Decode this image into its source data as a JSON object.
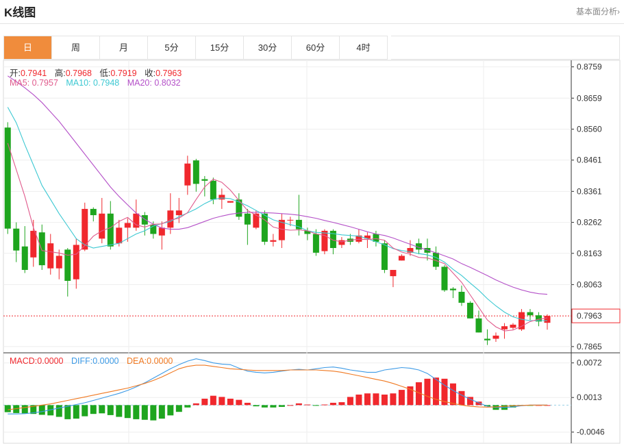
{
  "header": {
    "title": "K线图",
    "analysis_link": "基本面分析›"
  },
  "tabs": [
    {
      "label": "日",
      "active": true
    },
    {
      "label": "周",
      "active": false
    },
    {
      "label": "月",
      "active": false
    },
    {
      "label": "5分",
      "active": false
    },
    {
      "label": "15分",
      "active": false
    },
    {
      "label": "30分",
      "active": false
    },
    {
      "label": "60分",
      "active": false
    },
    {
      "label": "4时",
      "active": false
    }
  ],
  "ohlc_legend": {
    "open_label": "开:",
    "open": "0.7941",
    "high_label": "高:",
    "high": "0.7968",
    "low_label": "低:",
    "low": "0.7919",
    "close_label": "收:",
    "close": "0.7963"
  },
  "ma_legend": {
    "ma5_label": "MA5:",
    "ma5": "0.7957",
    "ma10_label": "MA10:",
    "ma10": "0.7948",
    "ma20_label": "MA20:",
    "ma20": "0.8032"
  },
  "macd_legend": {
    "macd_label": "MACD:",
    "macd": "0.0000",
    "diff_label": "DIFF:",
    "diff": "0.0000",
    "dea_label": "DEA:",
    "dea": "0.0000"
  },
  "colors": {
    "up": "#f0282d",
    "down": "#1ea51e",
    "ma5": "#e05a8c",
    "ma10": "#3cc8d2",
    "ma20": "#b450c8",
    "diff": "#3c9ae6",
    "dea": "#f07820",
    "accent": "#f08c3c"
  },
  "chart_data": {
    "type": "candlestick",
    "price_axis": {
      "ticks": [
        "0.8759",
        "0.8659",
        "0.8560",
        "0.8461",
        "0.8361",
        "0.8262",
        "0.8163",
        "0.8063",
        "0.7865"
      ],
      "range": [
        0.7845,
        0.878
      ]
    },
    "current_price": "0.7963",
    "candles": [
      [
        0.8565,
        0.8582,
        0.8225,
        0.8242
      ],
      [
        0.8242,
        0.8262,
        0.8135,
        0.8172
      ],
      [
        0.8185,
        0.825,
        0.81,
        0.811
      ],
      [
        0.815,
        0.827,
        0.812,
        0.8235
      ],
      [
        0.823,
        0.8255,
        0.811,
        0.8125
      ],
      [
        0.8115,
        0.8225,
        0.8095,
        0.8195
      ],
      [
        0.8115,
        0.8175,
        0.808,
        0.8155
      ],
      [
        0.8175,
        0.818,
        0.8025,
        0.8075
      ],
      [
        0.808,
        0.821,
        0.805,
        0.819
      ],
      [
        0.8175,
        0.8325,
        0.817,
        0.8305
      ],
      [
        0.8305,
        0.831,
        0.8265,
        0.8285
      ],
      [
        0.821,
        0.834,
        0.8195,
        0.829
      ],
      [
        0.829,
        0.833,
        0.8175,
        0.8185
      ],
      [
        0.8195,
        0.827,
        0.8185,
        0.8245
      ],
      [
        0.8245,
        0.8275,
        0.82,
        0.826
      ],
      [
        0.8245,
        0.8335,
        0.8235,
        0.829
      ],
      [
        0.8285,
        0.8295,
        0.822,
        0.8255
      ],
      [
        0.8255,
        0.8265,
        0.821,
        0.8225
      ],
      [
        0.822,
        0.8265,
        0.8175,
        0.8245
      ],
      [
        0.8245,
        0.8355,
        0.8225,
        0.83
      ],
      [
        0.8285,
        0.834,
        0.826,
        0.83
      ],
      [
        0.838,
        0.8475,
        0.835,
        0.845
      ],
      [
        0.846,
        0.8465,
        0.836,
        0.8385
      ],
      [
        0.84,
        0.841,
        0.8345,
        0.8395
      ],
      [
        0.8395,
        0.8405,
        0.832,
        0.8335
      ],
      [
        0.8335,
        0.837,
        0.8305,
        0.835
      ],
      [
        0.8325,
        0.833,
        0.8325,
        0.833
      ],
      [
        0.8335,
        0.8355,
        0.827,
        0.828
      ],
      [
        0.829,
        0.8305,
        0.819,
        0.8255
      ],
      [
        0.8245,
        0.83,
        0.824,
        0.829
      ],
      [
        0.829,
        0.83,
        0.819,
        0.82
      ],
      [
        0.82,
        0.8225,
        0.8185,
        0.8205
      ],
      [
        0.8205,
        0.829,
        0.818,
        0.827
      ],
      [
        0.827,
        0.828,
        0.825,
        0.827
      ],
      [
        0.827,
        0.835,
        0.822,
        0.824
      ],
      [
        0.8235,
        0.8245,
        0.8205,
        0.8225
      ],
      [
        0.8225,
        0.824,
        0.8155,
        0.8165
      ],
      [
        0.817,
        0.824,
        0.816,
        0.8235
      ],
      [
        0.8235,
        0.824,
        0.816,
        0.818
      ],
      [
        0.819,
        0.8215,
        0.818,
        0.8205
      ],
      [
        0.821,
        0.8225,
        0.819,
        0.82
      ],
      [
        0.82,
        0.824,
        0.8195,
        0.822
      ],
      [
        0.821,
        0.823,
        0.818,
        0.822
      ],
      [
        0.8225,
        0.8235,
        0.8185,
        0.82
      ],
      [
        0.8195,
        0.8205,
        0.81,
        0.811
      ],
      [
        0.809,
        0.8105,
        0.8055,
        0.811
      ],
      [
        0.814,
        0.816,
        0.814,
        0.8155
      ],
      [
        0.8165,
        0.8205,
        0.8155,
        0.818
      ],
      [
        0.8195,
        0.821,
        0.816,
        0.8175
      ],
      [
        0.818,
        0.821,
        0.814,
        0.8165
      ],
      [
        0.8165,
        0.8185,
        0.811,
        0.812
      ],
      [
        0.812,
        0.8125,
        0.804,
        0.8045
      ],
      [
        0.805,
        0.8055,
        0.802,
        0.8045
      ],
      [
        0.804,
        0.806,
        0.7995,
        0.8005
      ],
      [
        0.8005,
        0.801,
        0.7955,
        0.7955
      ],
      [
        0.7955,
        0.798,
        0.791,
        0.791
      ],
      [
        0.789,
        0.792,
        0.787,
        0.7885
      ],
      [
        0.789,
        0.791,
        0.788,
        0.79
      ],
      [
        0.792,
        0.794,
        0.789,
        0.793
      ],
      [
        0.7925,
        0.794,
        0.792,
        0.7935
      ],
      [
        0.792,
        0.7985,
        0.7915,
        0.7975
      ],
      [
        0.7975,
        0.7985,
        0.795,
        0.7965
      ],
      [
        0.7965,
        0.7975,
        0.793,
        0.7945
      ],
      [
        0.7941,
        0.7968,
        0.7919,
        0.7963
      ]
    ],
    "ma5": [
      0.8515,
      0.843,
      0.8345,
      0.8245,
      0.8172,
      0.8168,
      0.8164,
      0.8157,
      0.816,
      0.8188,
      0.8218,
      0.8235,
      0.8245,
      0.8265,
      0.8278,
      0.8254,
      0.8247,
      0.8256,
      0.8257,
      0.827,
      0.8275,
      0.8293,
      0.8335,
      0.8375,
      0.84,
      0.839,
      0.8365,
      0.8332,
      0.83,
      0.8285,
      0.827,
      0.8247,
      0.824,
      0.8237,
      0.8238,
      0.8235,
      0.8225,
      0.822,
      0.8205,
      0.82,
      0.8205,
      0.8208,
      0.8207,
      0.821,
      0.8205,
      0.818,
      0.8167,
      0.816,
      0.815,
      0.8148,
      0.814,
      0.813,
      0.81,
      0.807,
      0.803,
      0.799,
      0.795,
      0.7928,
      0.7915,
      0.7918,
      0.793,
      0.7945,
      0.7952,
      0.7957
    ],
    "ma10": [
      0.863,
      0.858,
      0.851,
      0.8445,
      0.838,
      0.8335,
      0.829,
      0.825,
      0.821,
      0.819,
      0.818,
      0.8185,
      0.819,
      0.8195,
      0.821,
      0.8225,
      0.8235,
      0.825,
      0.8258,
      0.8265,
      0.828,
      0.8292,
      0.8305,
      0.8322,
      0.8335,
      0.834,
      0.8338,
      0.8327,
      0.8315,
      0.83,
      0.8285,
      0.827,
      0.8262,
      0.8255,
      0.8248,
      0.8235,
      0.823,
      0.8228,
      0.8226,
      0.8222,
      0.822,
      0.8218,
      0.821,
      0.82,
      0.819,
      0.8178,
      0.8172,
      0.8168,
      0.8162,
      0.8158,
      0.815,
      0.8135,
      0.8112,
      0.8092,
      0.8068,
      0.8045,
      0.8018,
      0.7995,
      0.7975,
      0.796,
      0.7952,
      0.7948,
      0.7948,
      0.7948
    ],
    "ma20": [
      0.873,
      0.8712,
      0.8692,
      0.867,
      0.8645,
      0.8615,
      0.8585,
      0.855,
      0.8515,
      0.848,
      0.8445,
      0.841,
      0.8375,
      0.8345,
      0.8318,
      0.8292,
      0.8272,
      0.8256,
      0.8244,
      0.824,
      0.824,
      0.8245,
      0.8255,
      0.8265,
      0.8275,
      0.8282,
      0.8288,
      0.8292,
      0.8294,
      0.8294,
      0.8293,
      0.8292,
      0.829,
      0.8288,
      0.8285,
      0.828,
      0.8275,
      0.8268,
      0.8262,
      0.8255,
      0.8248,
      0.824,
      0.8232,
      0.8225,
      0.822,
      0.8212,
      0.8202,
      0.8192,
      0.8182,
      0.8174,
      0.8165,
      0.8155,
      0.8145,
      0.813,
      0.8118,
      0.8105,
      0.8092,
      0.8078,
      0.8066,
      0.8055,
      0.8046,
      0.8039,
      0.8034,
      0.8032
    ],
    "macd_axis": {
      "ticks": [
        "0.0072",
        "0.0013",
        "-0.0046"
      ],
      "range": [
        -0.0065,
        0.0088
      ]
    },
    "macd_hist": [
      -0.0012,
      -0.00135,
      -0.0014,
      -0.0015,
      -0.00165,
      -0.00175,
      -0.002,
      -0.0024,
      -0.0023,
      -0.0019,
      -0.0015,
      -0.0014,
      -0.0017,
      -0.002,
      -0.0022,
      -0.0024,
      -0.0025,
      -0.0026,
      -0.0023,
      -0.00175,
      -0.00115,
      -0.0004,
      0.0003,
      0.0011,
      0.0016,
      0.0014,
      0.0011,
      0.0009,
      0.0004,
      -0.0002,
      -0.0004,
      -0.0004,
      -0.0003,
      0.0,
      0.0003,
      0.0001,
      -5e-05,
      0.0001,
      0.0004,
      0.0005,
      0.0014,
      0.0018,
      0.002,
      0.002,
      0.0018,
      0.002,
      0.0026,
      0.0032,
      0.0039,
      0.0045,
      0.0047,
      0.0045,
      0.0037,
      0.0024,
      0.0014,
      0.0006,
      -0.0002,
      -0.0008,
      -0.0008,
      -0.0004,
      -0.0001,
      -5e-05,
      0.0,
      0.0
    ],
    "macd_diff": [
      -0.0015,
      -0.0015,
      -0.00145,
      -0.0013,
      -0.0011,
      -0.0008,
      -0.0005,
      -0.0002,
      0.0001,
      0.0004,
      0.0008,
      0.0012,
      0.0016,
      0.002,
      0.0025,
      0.0031,
      0.0038,
      0.0046,
      0.0054,
      0.0062,
      0.0069,
      0.0075,
      0.0079,
      0.0076,
      0.0072,
      0.007,
      0.0069,
      0.0063,
      0.0058,
      0.0056,
      0.0055,
      0.0056,
      0.0058,
      0.006,
      0.0061,
      0.006,
      0.0062,
      0.0064,
      0.0065,
      0.0063,
      0.006,
      0.0058,
      0.0056,
      0.0056,
      0.006,
      0.0062,
      0.0064,
      0.0063,
      0.006,
      0.0054,
      0.0044,
      0.0034,
      0.0025,
      0.0017,
      0.001,
      0.0004,
      -0.0002,
      -0.0004,
      -0.0004,
      -0.0003,
      -0.0001,
      0.0,
      0.0,
      0.0
    ],
    "macd_dea": [
      -0.0008,
      -0.0006,
      -0.0004,
      -0.0002,
      0.0,
      0.0002,
      0.0005,
      0.0008,
      0.0011,
      0.0014,
      0.0017,
      0.002,
      0.0023,
      0.0026,
      0.0029,
      0.0033,
      0.0037,
      0.0042,
      0.0048,
      0.0055,
      0.0062,
      0.0066,
      0.0068,
      0.0068,
      0.0066,
      0.0064,
      0.0062,
      0.0061,
      0.006,
      0.0059,
      0.0059,
      0.0059,
      0.0059,
      0.006,
      0.006,
      0.006,
      0.006,
      0.0059,
      0.0058,
      0.0056,
      0.0053,
      0.005,
      0.0047,
      0.0044,
      0.0041,
      0.0037,
      0.0032,
      0.0027,
      0.0021,
      0.0015,
      0.001,
      0.0006,
      0.0003,
      0.0,
      -0.0002,
      -0.0003,
      -0.00035,
      -0.0003,
      -0.0002,
      -0.0001,
      -5e-05,
      0.0,
      0.0,
      0.0
    ]
  }
}
